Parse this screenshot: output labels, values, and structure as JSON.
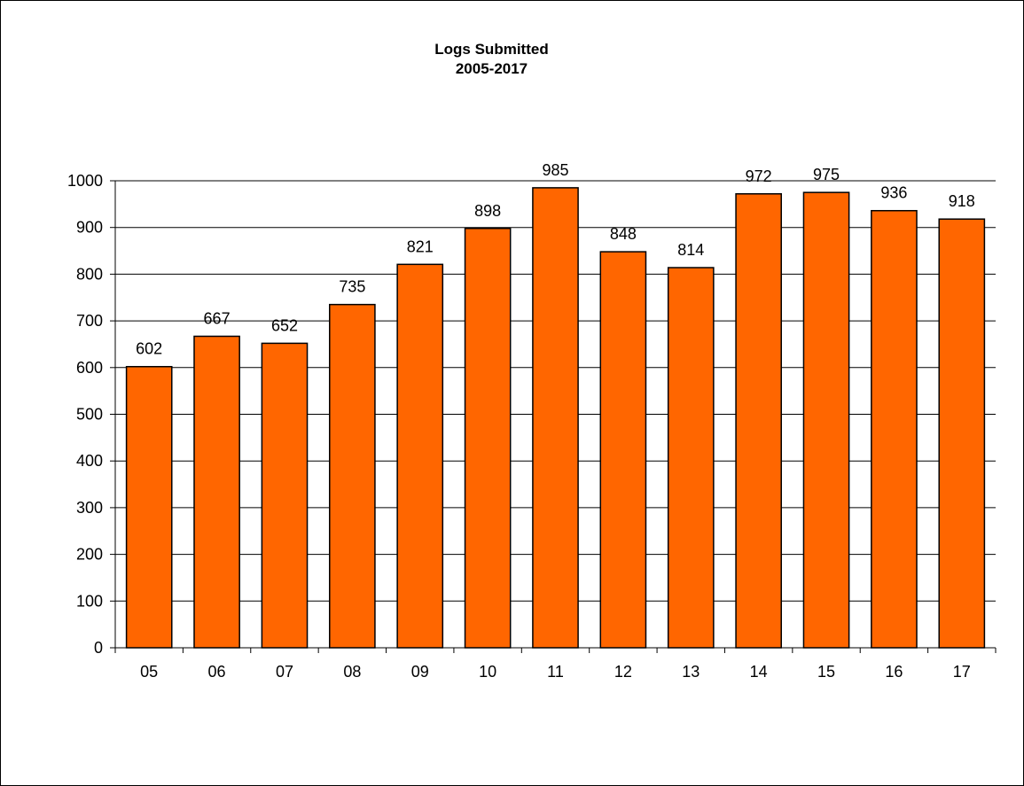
{
  "chart_data": {
    "type": "bar",
    "title": "Logs Submitted",
    "subtitle": "2005-2017",
    "xlabel": "",
    "ylabel": "",
    "categories": [
      "05",
      "06",
      "07",
      "08",
      "09",
      "10",
      "11",
      "12",
      "13",
      "14",
      "15",
      "16",
      "17"
    ],
    "values": [
      602,
      667,
      652,
      735,
      821,
      898,
      985,
      848,
      814,
      972,
      975,
      936,
      918
    ],
    "ylim": [
      0,
      1000
    ],
    "yticks": [
      0,
      100,
      200,
      300,
      400,
      500,
      600,
      700,
      800,
      900,
      1000
    ],
    "grid": true,
    "legend": "none",
    "bar_color": "#FF6600",
    "data_labels": true
  }
}
